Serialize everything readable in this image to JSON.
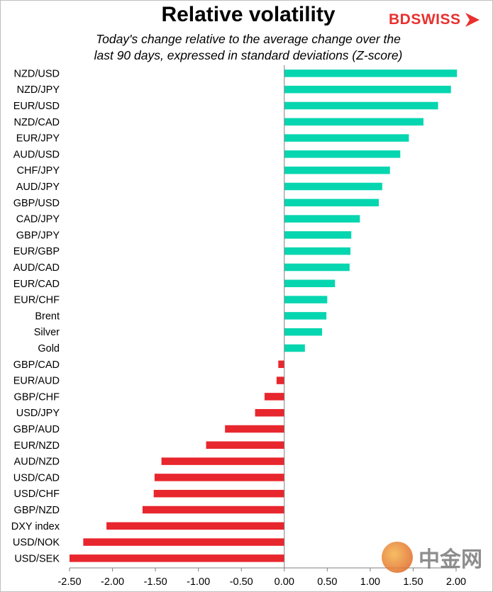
{
  "chart_data": {
    "type": "bar",
    "orientation": "horizontal",
    "title": "Relative volatility",
    "subtitle_lines": [
      "Today's change relative to the  average change over the",
      "last 90 days, expressed in standard deviations (Z-score)"
    ],
    "categories": [
      "NZD/USD",
      "NZD/JPY",
      "EUR/USD",
      "NZD/CAD",
      "EUR/JPY",
      "AUD/USD",
      "CHF/JPY",
      "AUD/JPY",
      "GBP/USD",
      "CAD/JPY",
      "GBP/JPY",
      "EUR/GBP",
      "AUD/CAD",
      "EUR/CAD",
      "EUR/CHF",
      "Brent",
      "Silver",
      "Gold",
      "GBP/CAD",
      "EUR/AUD",
      "GBP/CHF",
      "USD/JPY",
      "GBP/AUD",
      "EUR/NZD",
      "AUD/NZD",
      "USD/CAD",
      "USD/CHF",
      "GBP/NZD",
      "DXY index",
      "USD/NOK",
      "USD/SEK"
    ],
    "values": [
      2.01,
      1.94,
      1.79,
      1.62,
      1.45,
      1.35,
      1.23,
      1.14,
      1.1,
      0.88,
      0.78,
      0.77,
      0.76,
      0.59,
      0.5,
      0.49,
      0.44,
      0.24,
      -0.07,
      -0.09,
      -0.23,
      -0.34,
      -0.69,
      -0.91,
      -1.43,
      -1.51,
      -1.52,
      -1.65,
      -2.07,
      -2.34,
      -2.5
    ],
    "xlim": [
      -2.5,
      2.0
    ],
    "xticks": [
      "-2.50",
      "-2.00",
      "-1.50",
      "-1.00",
      "-0.50",
      "0.00",
      "0.50",
      "1.00",
      "1.50",
      "2.00"
    ],
    "positive_color": "#06d6b0",
    "negative_color": "#e8262d",
    "grid": false
  },
  "brand": {
    "logo_text": "BDSWISS",
    "logo_color": "#e8312f"
  },
  "watermark": {
    "text": "中金网"
  }
}
